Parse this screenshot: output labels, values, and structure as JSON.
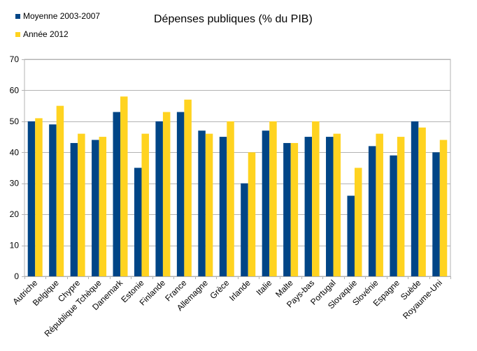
{
  "chart_data": {
    "type": "bar",
    "title": "Dépenses publiques (% du PIB)",
    "xlabel": "",
    "ylabel": "",
    "ylim": [
      0,
      70
    ],
    "yticks": [
      0,
      10,
      20,
      30,
      40,
      50,
      60,
      70
    ],
    "grid": true,
    "legend_position": "top-left",
    "categories": [
      "Autriche",
      "Belgique",
      "Chypre",
      "République Tchèque",
      "Danemark",
      "Estonie",
      "Finlande",
      "France",
      "Allemagne",
      "Grèce",
      "Irlande",
      "Italie",
      "Malte",
      "Pays-bas",
      "Portugal",
      "Slovaquie",
      "Slovénie",
      "Espagne",
      "Suède",
      "Royaume-Uni"
    ],
    "series": [
      {
        "name": "Moyenne 2003-2007",
        "color": "#004586",
        "values": [
          50,
          49,
          43,
          44,
          53,
          35,
          50,
          53,
          47,
          45,
          30,
          47,
          43,
          45,
          45,
          26,
          42,
          39,
          50,
          40
        ]
      },
      {
        "name": "Année 2012",
        "color": "#ffd320",
        "values": [
          51,
          55,
          46,
          45,
          58,
          46,
          53,
          57,
          46,
          50,
          40,
          50,
          43,
          50,
          46,
          35,
          46,
          45,
          48,
          44
        ]
      }
    ]
  }
}
